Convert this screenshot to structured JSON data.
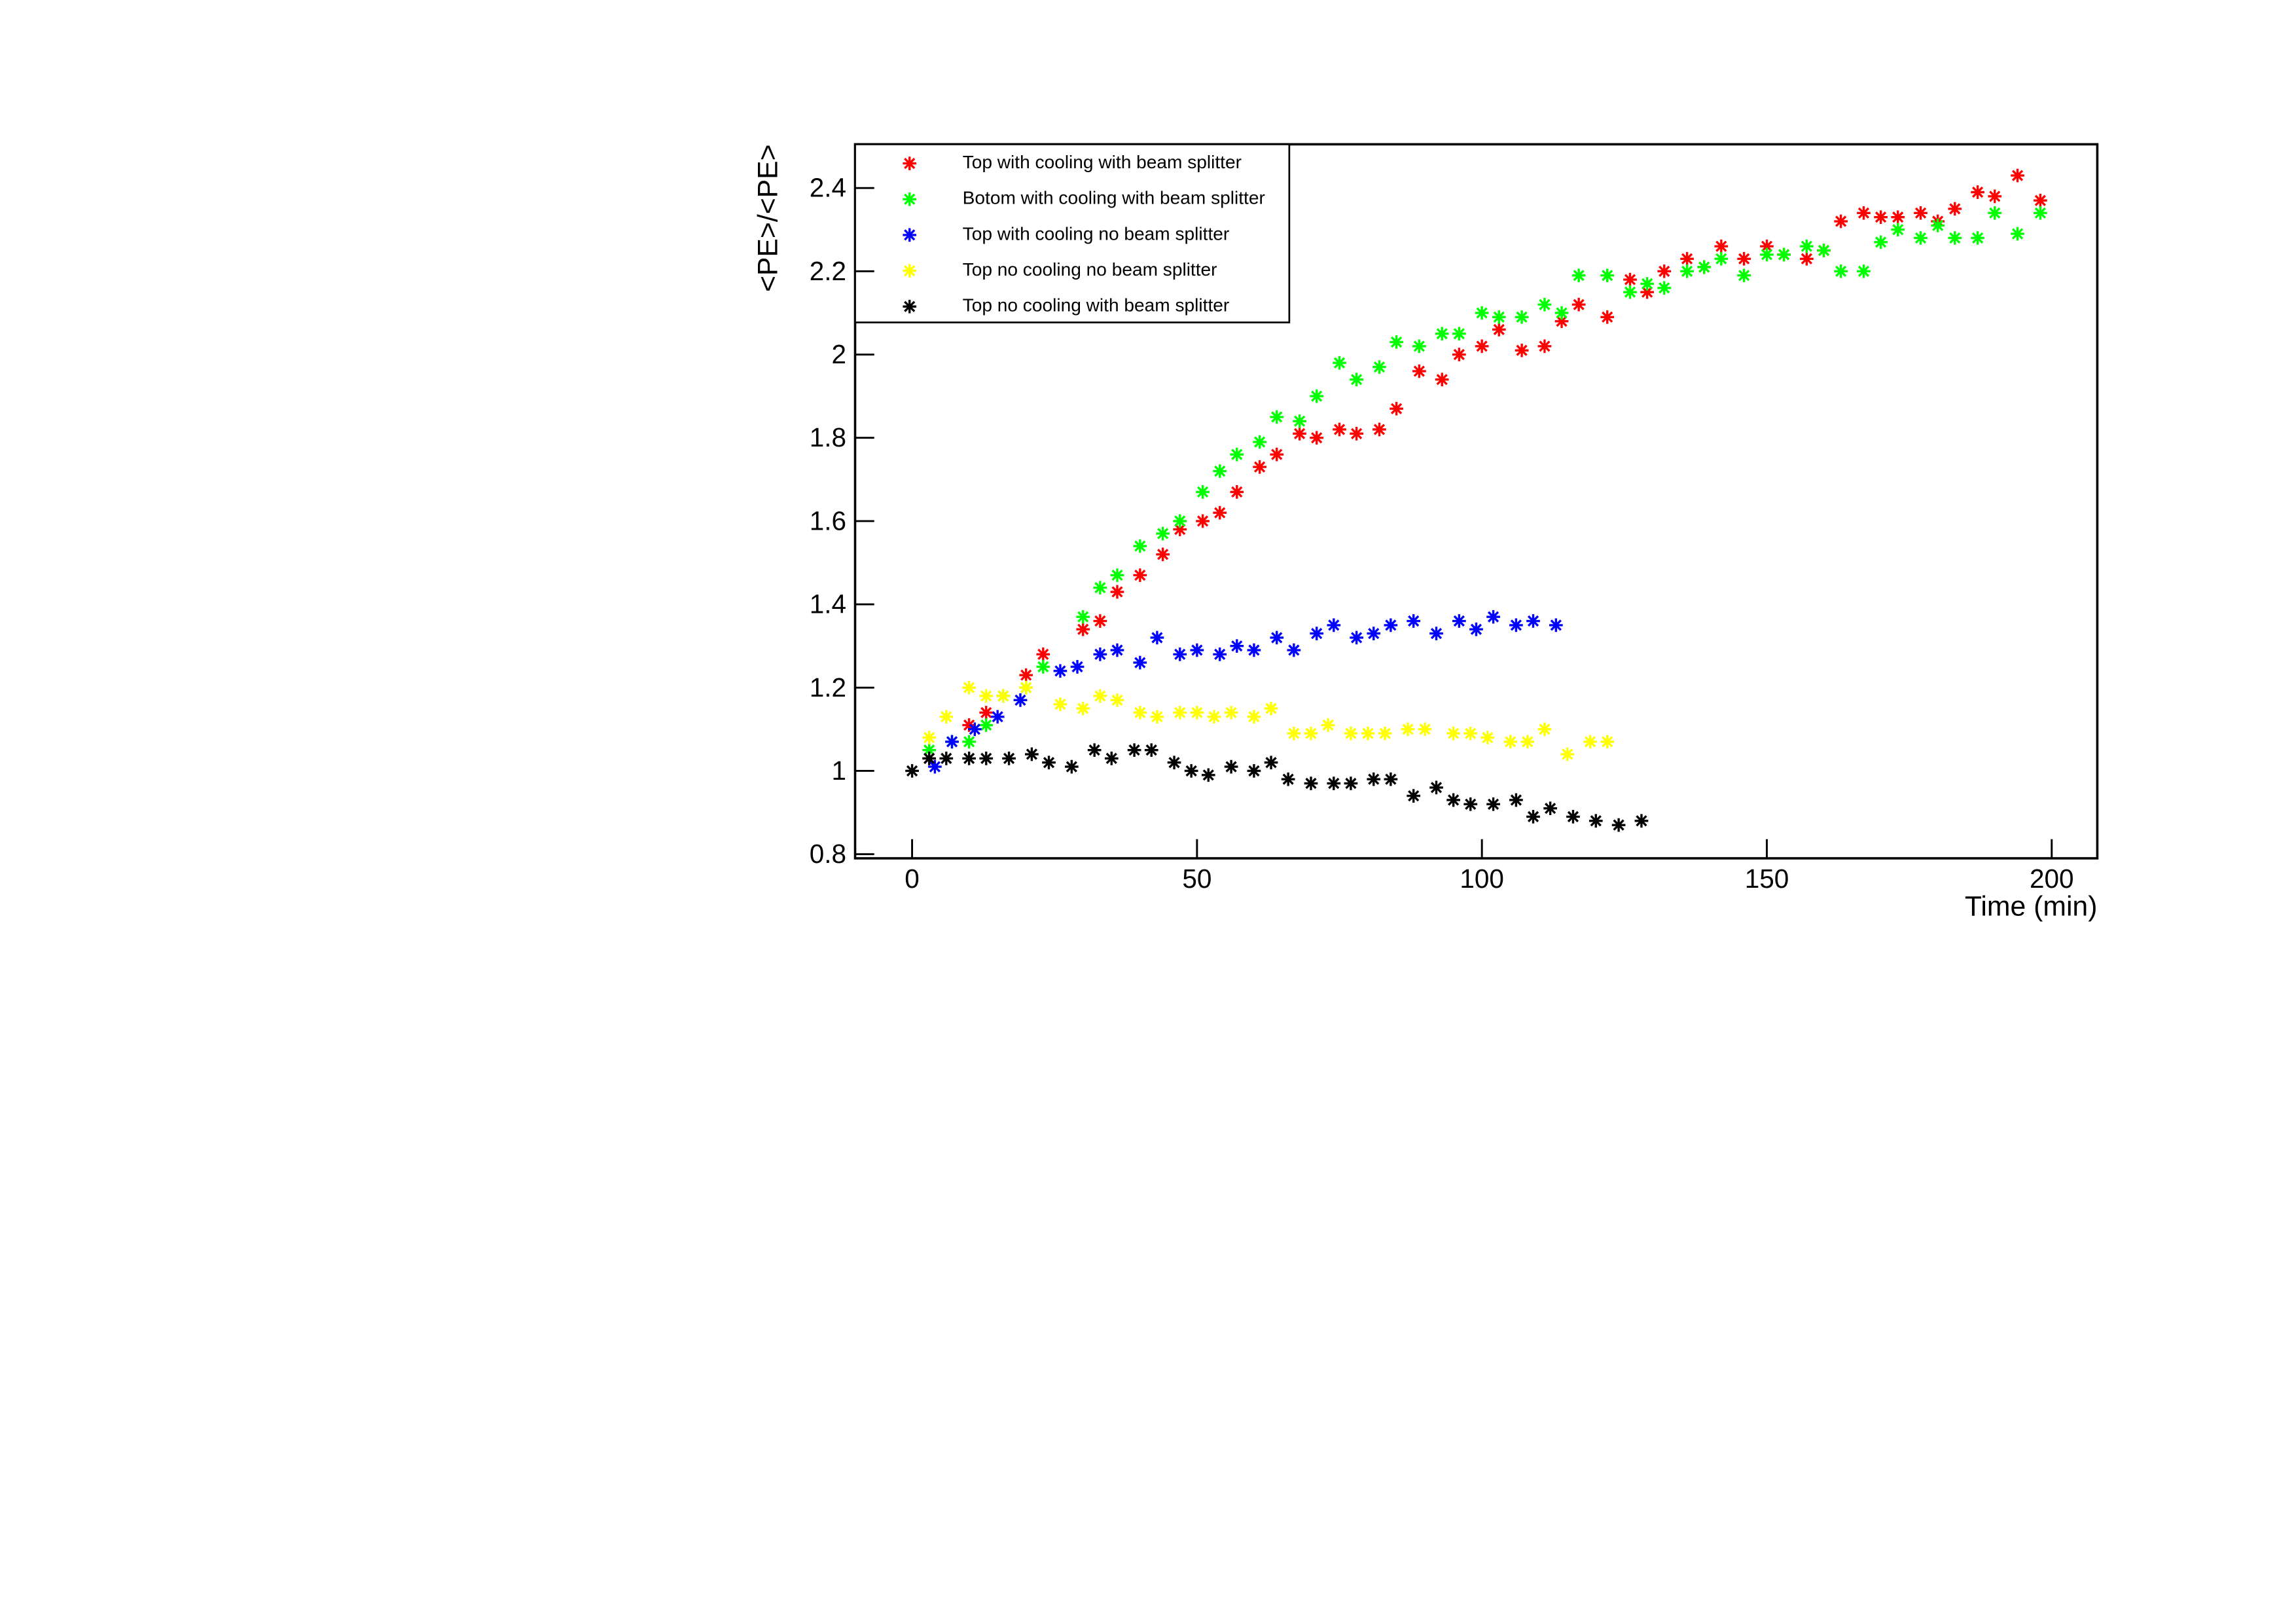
{
  "chart_data": {
    "type": "scatter",
    "xlabel": "Time (min)",
    "ylabel": "<PE>/<PE>",
    "xlim": [
      -10,
      208
    ],
    "ylim": [
      0.79,
      2.505
    ],
    "xticks": [
      0,
      50,
      100,
      150,
      200
    ],
    "yticks": [
      0.8,
      1,
      1.2,
      1.4,
      1.6,
      1.8,
      2,
      2.2,
      2.4
    ],
    "legend": "upper-left",
    "series": [
      {
        "name": "Top with cooling with beam splitter",
        "color": "#ff0000",
        "x": [
          3,
          10,
          13,
          20,
          23,
          30,
          33,
          36,
          40,
          44,
          47,
          51,
          54,
          57,
          61,
          64,
          68,
          71,
          75,
          78,
          82,
          85,
          89,
          93,
          96,
          100,
          103,
          107,
          111,
          114,
          117,
          122,
          126,
          129,
          132,
          136,
          139,
          142,
          146,
          150,
          153,
          157,
          160,
          163,
          167,
          170,
          173,
          177,
          180,
          183,
          187,
          190,
          194,
          198
        ],
        "values": [
          1.03,
          1.11,
          1.14,
          1.23,
          1.28,
          1.34,
          1.36,
          1.43,
          1.47,
          1.52,
          1.58,
          1.6,
          1.62,
          1.67,
          1.73,
          1.76,
          1.81,
          1.8,
          1.82,
          1.81,
          1.82,
          1.87,
          1.96,
          1.94,
          2.0,
          2.02,
          2.06,
          2.01,
          2.02,
          2.08,
          2.12,
          2.09,
          2.18,
          2.15,
          2.2,
          2.23,
          2.21,
          2.26,
          2.23,
          2.26,
          2.24,
          2.23,
          2.25,
          2.32,
          2.34,
          2.33,
          2.33,
          2.34,
          2.32,
          2.35,
          2.39,
          2.38,
          2.43,
          2.37
        ]
      },
      {
        "name": "Botom with cooling with beam splitter",
        "color": "#00ff00",
        "x": [
          3,
          7,
          10,
          13,
          16,
          20,
          23,
          30,
          33,
          36,
          40,
          44,
          47,
          51,
          54,
          57,
          61,
          64,
          68,
          71,
          75,
          78,
          82,
          85,
          89,
          93,
          96,
          100,
          103,
          107,
          111,
          114,
          117,
          122,
          126,
          129,
          132,
          136,
          139,
          142,
          146,
          150,
          153,
          157,
          160,
          163,
          167,
          170,
          173,
          177,
          180,
          183,
          187,
          190,
          194,
          198
        ],
        "values": [
          1.05,
          1.07,
          1.07,
          1.11,
          1.18,
          1.2,
          1.25,
          1.37,
          1.44,
          1.47,
          1.54,
          1.57,
          1.6,
          1.67,
          1.72,
          1.76,
          1.79,
          1.85,
          1.84,
          1.9,
          1.98,
          1.94,
          1.97,
          2.03,
          2.02,
          2.05,
          2.05,
          2.1,
          2.09,
          2.09,
          2.12,
          2.1,
          2.19,
          2.19,
          2.15,
          2.17,
          2.16,
          2.2,
          2.21,
          2.23,
          2.19,
          2.24,
          2.24,
          2.26,
          2.25,
          2.2,
          2.2,
          2.27,
          2.3,
          2.28,
          2.31,
          2.28,
          2.28,
          2.34,
          2.29,
          2.34
        ]
      },
      {
        "name": "Top with cooling no beam splitter",
        "color": "#0000ff",
        "x": [
          4,
          7,
          11,
          15,
          19,
          26,
          29,
          33,
          36,
          40,
          43,
          47,
          50,
          54,
          57,
          60,
          64,
          67,
          71,
          74,
          78,
          81,
          84,
          88,
          92,
          96,
          99,
          102,
          106,
          109,
          113
        ],
        "values": [
          1.01,
          1.07,
          1.1,
          1.13,
          1.17,
          1.24,
          1.25,
          1.28,
          1.29,
          1.26,
          1.32,
          1.28,
          1.29,
          1.28,
          1.3,
          1.29,
          1.32,
          1.29,
          1.33,
          1.35,
          1.32,
          1.33,
          1.35,
          1.36,
          1.33,
          1.36,
          1.34,
          1.37,
          1.35,
          1.36,
          1.35
        ]
      },
      {
        "name": "Top no cooling no beam splitter",
        "color": "#ffff00",
        "x": [
          3,
          6,
          10,
          13,
          16,
          20,
          26,
          30,
          33,
          36,
          40,
          43,
          47,
          50,
          53,
          56,
          60,
          63,
          67,
          70,
          73,
          77,
          80,
          83,
          87,
          90,
          95,
          98,
          101,
          105,
          108,
          111,
          115,
          119,
          122
        ],
        "values": [
          1.08,
          1.13,
          1.2,
          1.18,
          1.18,
          1.2,
          1.16,
          1.15,
          1.18,
          1.17,
          1.14,
          1.13,
          1.14,
          1.14,
          1.13,
          1.14,
          1.13,
          1.15,
          1.09,
          1.09,
          1.11,
          1.09,
          1.09,
          1.09,
          1.1,
          1.1,
          1.09,
          1.09,
          1.08,
          1.07,
          1.07,
          1.1,
          1.04,
          1.07,
          1.07
        ]
      },
      {
        "name": "Top no cooling with beam splitter",
        "color": "#000000",
        "x": [
          0,
          3,
          6,
          10,
          13,
          17,
          21,
          24,
          28,
          32,
          35,
          39,
          42,
          46,
          49,
          52,
          56,
          60,
          63,
          66,
          70,
          74,
          77,
          81,
          84,
          88,
          92,
          95,
          98,
          102,
          106,
          109,
          112,
          116,
          120,
          124,
          128
        ],
        "values": [
          1.0,
          1.03,
          1.03,
          1.03,
          1.03,
          1.03,
          1.04,
          1.02,
          1.01,
          1.05,
          1.03,
          1.05,
          1.05,
          1.02,
          1.0,
          0.99,
          1.01,
          1.0,
          1.02,
          0.98,
          0.97,
          0.97,
          0.97,
          0.98,
          0.98,
          0.94,
          0.96,
          0.93,
          0.92,
          0.92,
          0.93,
          0.89,
          0.91,
          0.89,
          0.88,
          0.87,
          0.88
        ]
      }
    ]
  }
}
